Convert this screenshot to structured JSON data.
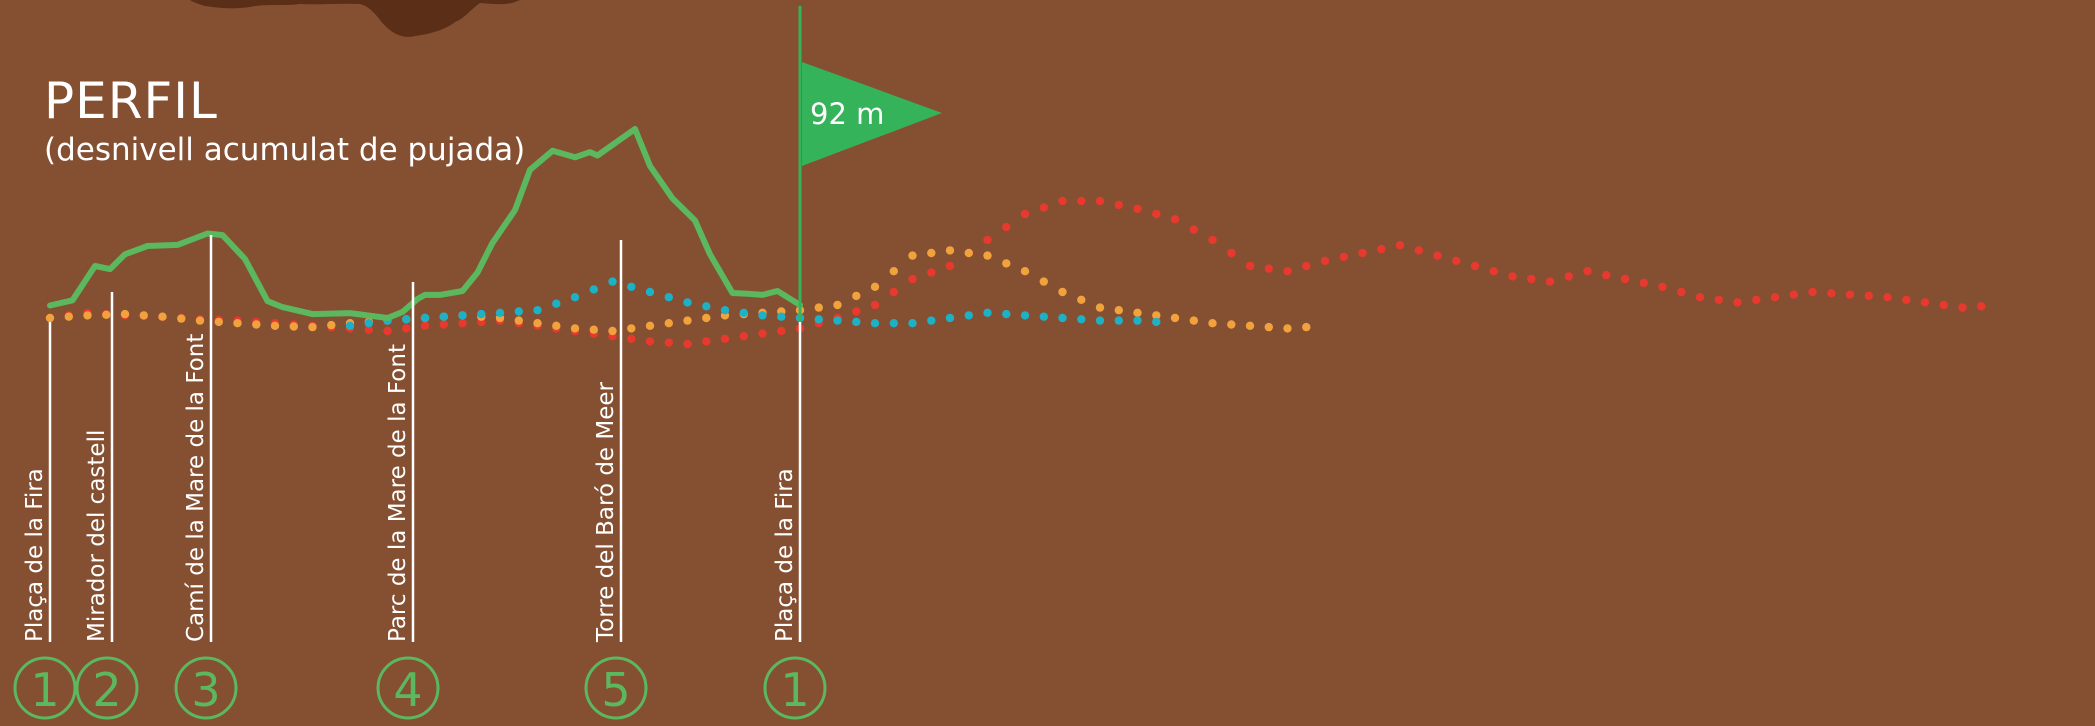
{
  "colors": {
    "background": "#854f32",
    "terrain": "#5b2e17",
    "green": "#5cb85f",
    "flag": "#35b35a",
    "orange": "#f2a23c",
    "cyan": "#1eb0c4",
    "red": "#e8392f",
    "white": "#ffffff"
  },
  "header": {
    "title": "PERFIL",
    "subtitle": "(desnivell acumulat de pujada)"
  },
  "flag": {
    "label": "92 m"
  },
  "chart_data": {
    "type": "line",
    "title": "PERFIL",
    "subtitle": "(desnivell acumulat de pujada)",
    "stops": [
      {
        "number": "1",
        "name": "Plaça de la Fira",
        "x": 0
      },
      {
        "number": "2",
        "name": "Mirador del castell",
        "x": 8.3
      },
      {
        "number": "3",
        "name": "Camí de la Mare de la Font",
        "x": 21.3
      },
      {
        "number": "4",
        "name": "Parc de la Mare de la Font",
        "x": 49.3
      },
      {
        "number": "5",
        "name": "Torre del Baró de Meer",
        "x": 75.6
      },
      {
        "number": "1",
        "name": "Plaça de la Fira",
        "x": 100
      }
    ],
    "annotation": {
      "x": 100,
      "text": "92 m"
    },
    "series": [
      {
        "style": "solid",
        "color": "#5cb85f",
        "x": [
          0,
          3,
          6,
          8,
          10,
          13,
          17,
          21,
          23,
          26,
          29,
          31,
          35,
          40,
          45,
          47,
          49,
          50,
          52,
          55,
          57,
          59,
          62,
          64,
          67,
          70,
          72,
          73,
          76,
          78,
          80,
          83,
          86,
          88,
          91,
          93,
          95,
          97,
          100
        ],
        "y": [
          4.8,
          6.8,
          20,
          18.8,
          24.5,
          27.7,
          28.1,
          32.5,
          31.9,
          22.7,
          6.5,
          4.2,
          1.5,
          1.9,
          0,
          2.3,
          7.3,
          8.9,
          8.9,
          10.4,
          17.5,
          28.9,
          41.5,
          57,
          64.3,
          61.8,
          63.8,
          62.5,
          68.6,
          72.7,
          58.5,
          46,
          37.5,
          24.5,
          9.6,
          9.3,
          8.9,
          10.4,
          5
        ]
      },
      {
        "style": "dotted",
        "color": "#e8392f",
        "x": [
          0,
          5,
          10,
          15,
          20,
          25,
          30,
          35,
          40,
          45,
          50,
          55,
          60,
          65,
          70,
          75,
          80,
          85,
          90,
          95,
          100,
          105,
          110,
          115,
          120,
          125,
          130,
          135,
          140,
          145,
          150,
          155,
          160,
          165,
          170,
          175,
          180,
          185,
          190,
          195,
          200,
          205,
          210,
          215,
          220,
          225,
          230,
          235,
          240,
          245,
          250,
          255,
          260
        ],
        "y": [
          0,
          2,
          1,
          0.5,
          -0.5,
          -1,
          -2,
          -3,
          -4,
          -5,
          -3,
          -2,
          -1,
          -3,
          -5,
          -7,
          -9,
          -10,
          -8,
          -6,
          -4,
          0,
          5,
          15,
          20,
          30,
          40,
          45,
          45,
          42,
          38,
          30,
          20,
          18,
          22,
          25,
          28,
          24,
          20,
          16,
          14,
          18,
          15,
          12,
          8,
          6,
          8,
          10,
          9,
          8,
          6,
          4,
          5
        ]
      },
      {
        "style": "dotted",
        "color": "#f2a23c",
        "x": [
          0,
          5,
          10,
          15,
          20,
          25,
          30,
          35,
          40,
          45,
          50,
          55,
          60,
          65,
          70,
          75,
          80,
          85,
          90,
          95,
          100,
          105,
          110,
          115,
          120,
          125,
          130,
          135,
          140,
          145,
          150,
          155,
          160,
          165,
          170
        ],
        "y": [
          0,
          1,
          1.5,
          0.5,
          -1,
          -2,
          -3,
          -3.5,
          -2,
          -1,
          0,
          1,
          0,
          -2,
          -4,
          -5,
          -3,
          -1,
          1,
          2,
          3,
          5,
          12,
          24,
          26,
          24,
          18,
          10,
          4,
          2,
          0,
          -2,
          -3,
          -4,
          -3
        ]
      },
      {
        "style": "dotted",
        "color": "#1eb0c4",
        "x": [
          40,
          45,
          50,
          55,
          60,
          65,
          70,
          75,
          80,
          85,
          90,
          95,
          100,
          105,
          110,
          115,
          120,
          125,
          130,
          135,
          140,
          145,
          150
        ],
        "y": [
          -3,
          -1,
          0,
          1,
          2,
          3,
          8,
          14,
          10,
          6,
          3,
          1,
          0,
          -1,
          -2,
          -2,
          0,
          2,
          1,
          0,
          -1,
          -1,
          -2
        ]
      }
    ]
  }
}
